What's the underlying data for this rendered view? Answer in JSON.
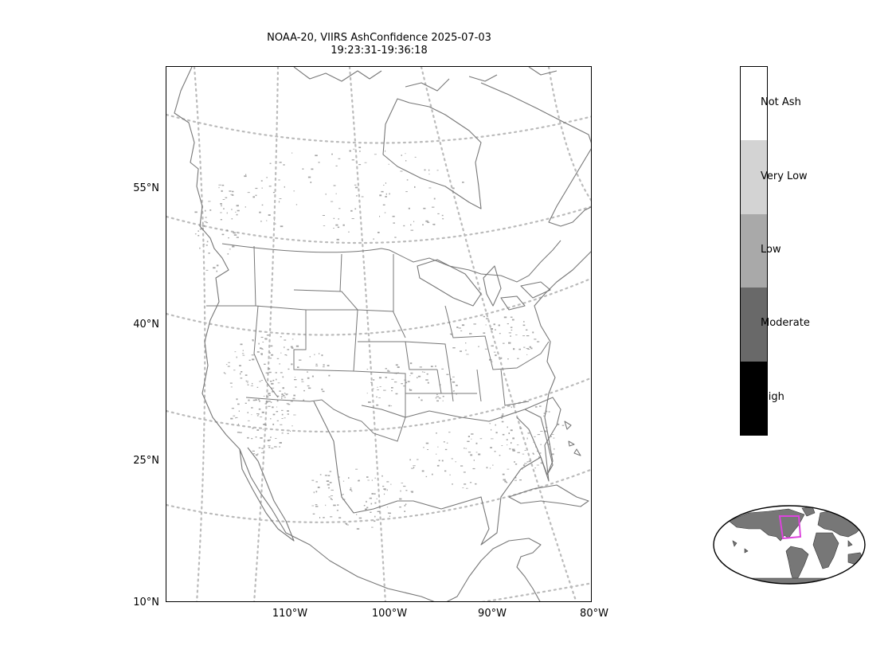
{
  "title": {
    "line1": "NOAA-20, VIIRS AshConfidence 2025-07-03",
    "line2": "19:23:31-19:36:18"
  },
  "map": {
    "projection": "conic",
    "coastline_color": "#777777",
    "graticule_color": "#bbbbbb",
    "ash_color": "#888888",
    "lat_labels": [
      "55°N",
      "40°N",
      "25°N",
      "10°N"
    ],
    "lon_labels": [
      "110°W",
      "100°W",
      "90°W",
      "80°W"
    ]
  },
  "colorbar": {
    "categories": [
      {
        "label": "Not Ash",
        "color": "#ffffff"
      },
      {
        "label": "Very Low",
        "color": "#d3d3d3"
      },
      {
        "label": "Low",
        "color": "#a9a9a9"
      },
      {
        "label": "Moderate",
        "color": "#696969"
      },
      {
        "label": "High",
        "color": "#000000"
      }
    ]
  },
  "inset": {
    "land_color": "#777777",
    "ocean_color": "#ffffff",
    "highlight_color": "#dd44dd"
  }
}
